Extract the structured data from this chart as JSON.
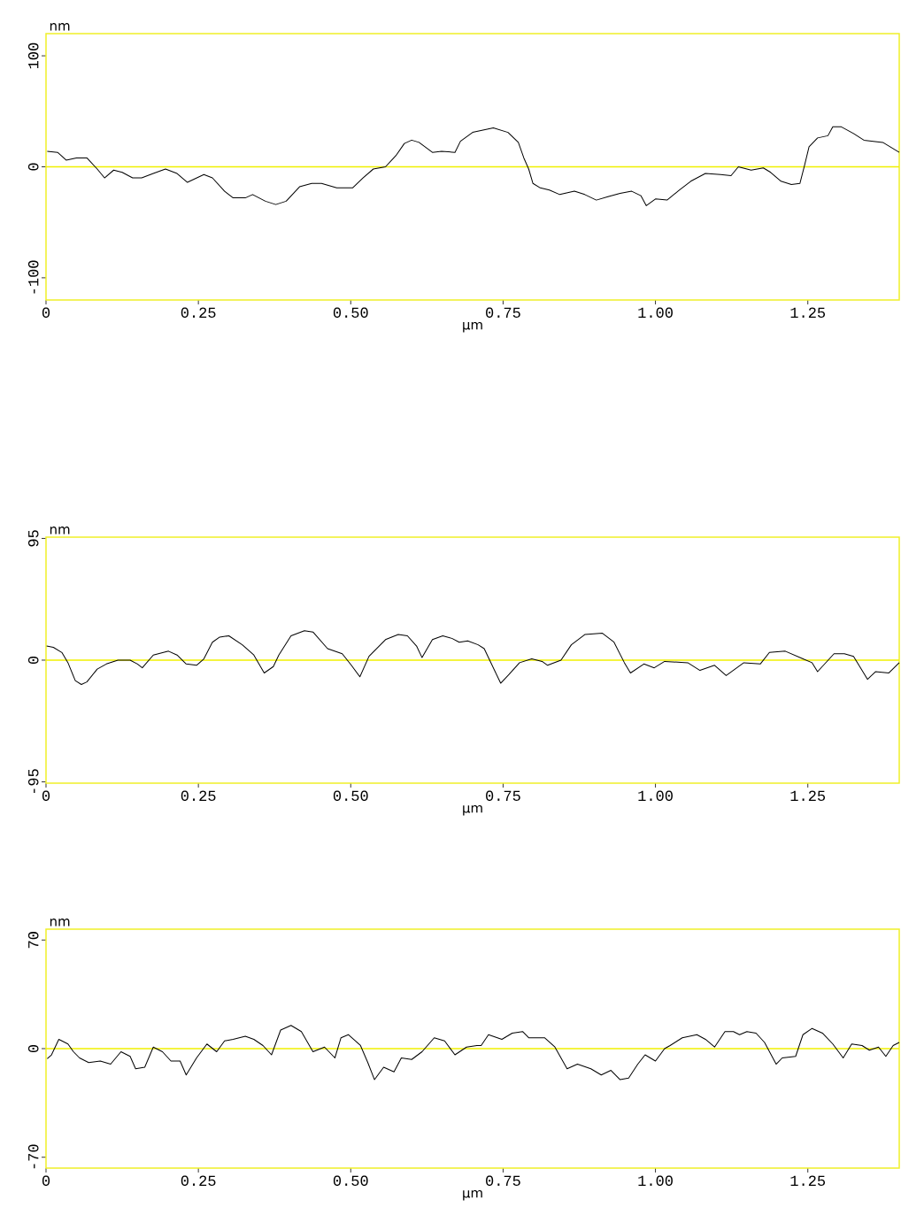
{
  "chart_data": [
    {
      "type": "line",
      "xlabel": "µm",
      "ylabel": "nm",
      "color": "#000000",
      "xlim": [
        0,
        1.4
      ],
      "ylim": [
        -120,
        120
      ],
      "xticks": [
        0,
        {
          "value": 0.25,
          "label": "0.25"
        },
        {
          "value": 0.5,
          "label": "0.50"
        },
        {
          "value": 0.75,
          "label": "0.75"
        },
        {
          "value": 1.0,
          "label": "1.00"
        },
        {
          "value": 1.25,
          "label": "1.25"
        }
      ],
      "yticks": [
        -100,
        0,
        100
      ],
      "ref_lines": [
        {
          "axis": "y",
          "value": 0,
          "color": "#f0f000"
        }
      ],
      "x": [
        0.002,
        0.019,
        0.033,
        0.05,
        0.067,
        0.084,
        0.096,
        0.111,
        0.125,
        0.142,
        0.157,
        0.176,
        0.196,
        0.215,
        0.232,
        0.259,
        0.273,
        0.293,
        0.307,
        0.327,
        0.339,
        0.36,
        0.377,
        0.394,
        0.416,
        0.436,
        0.452,
        0.477,
        0.503,
        0.52,
        0.537,
        0.557,
        0.574,
        0.588,
        0.6,
        0.612,
        0.634,
        0.649,
        0.671,
        0.68,
        0.7,
        0.734,
        0.758,
        0.775,
        0.784,
        0.792,
        0.799,
        0.811,
        0.826,
        0.843,
        0.867,
        0.884,
        0.903,
        0.922,
        0.942,
        0.961,
        0.976,
        0.985,
        1.0,
        1.019,
        1.039,
        1.058,
        1.082,
        1.107,
        1.124,
        1.136,
        1.157,
        1.177,
        1.189,
        1.206,
        1.223,
        1.237,
        1.245,
        1.252,
        1.266,
        1.283,
        1.291,
        1.305,
        1.325,
        1.342,
        1.373,
        1.4
      ],
      "values": [
        14,
        13,
        6,
        8,
        8,
        -2,
        -10,
        -3,
        -5,
        -10,
        -10,
        -6,
        -2,
        -6,
        -14,
        -7,
        -10,
        -22,
        -28,
        -28,
        -25,
        -31,
        -34,
        -31,
        -18,
        -15,
        -15,
        -19,
        -19,
        -10,
        -2,
        0,
        10,
        21,
        24,
        22,
        13,
        14,
        13,
        23,
        31,
        35,
        31,
        22,
        8,
        -2,
        -15,
        -19,
        -21,
        -25,
        -22,
        -25,
        -30,
        -27,
        -24,
        -22,
        -26,
        -35,
        -29,
        -30,
        -21,
        -13,
        -6,
        -7,
        -8,
        0,
        -3,
        -1,
        -5,
        -13,
        -16,
        -15,
        2,
        18,
        26,
        28,
        36,
        36,
        30,
        24,
        22,
        13
      ]
    },
    {
      "type": "line",
      "xlabel": "µm",
      "ylabel": "nm",
      "color": "#000000",
      "xlim": [
        0,
        1.4
      ],
      "ylim": [
        -96,
        96
      ],
      "xticks": [
        0,
        {
          "value": 0.25,
          "label": "0.25"
        },
        {
          "value": 0.5,
          "label": "0.50"
        },
        {
          "value": 0.75,
          "label": "0.75"
        },
        {
          "value": 1.0,
          "label": "1.00"
        },
        {
          "value": 1.25,
          "label": "1.25"
        }
      ],
      "yticks": [
        -95,
        0,
        95
      ],
      "ref_lines": [
        {
          "axis": "y",
          "value": 0,
          "color": "#f0f000"
        }
      ],
      "x": [
        0.001,
        0.012,
        0.026,
        0.036,
        0.048,
        0.058,
        0.067,
        0.084,
        0.099,
        0.118,
        0.138,
        0.15,
        0.158,
        0.176,
        0.201,
        0.215,
        0.23,
        0.247,
        0.259,
        0.273,
        0.285,
        0.3,
        0.322,
        0.341,
        0.358,
        0.373,
        0.382,
        0.402,
        0.424,
        0.438,
        0.462,
        0.486,
        0.501,
        0.515,
        0.53,
        0.557,
        0.578,
        0.593,
        0.608,
        0.617,
        0.634,
        0.651,
        0.666,
        0.678,
        0.692,
        0.709,
        0.719,
        0.729,
        0.746,
        0.76,
        0.777,
        0.797,
        0.814,
        0.823,
        0.845,
        0.862,
        0.884,
        0.913,
        0.932,
        0.949,
        0.959,
        0.981,
        0.998,
        1.015,
        1.053,
        1.073,
        1.097,
        1.116,
        1.145,
        1.172,
        1.187,
        1.213,
        1.242,
        1.257,
        1.266,
        1.293,
        1.31,
        1.325,
        1.348,
        1.361,
        1.383,
        1.4
      ],
      "values": [
        11,
        10,
        6,
        -2,
        -16,
        -19,
        -17,
        -7,
        -3,
        0,
        0,
        -3,
        -6,
        4,
        7,
        4,
        -3,
        -4,
        1,
        14,
        18,
        19,
        12,
        4,
        -10,
        -5,
        4,
        19,
        23,
        22,
        9,
        5,
        -4,
        -13,
        3,
        16,
        20,
        19,
        11,
        2,
        16,
        19,
        17,
        14,
        15,
        12,
        9,
        -1,
        -18,
        -11,
        -2,
        1,
        -1,
        -4,
        0,
        12,
        20,
        21,
        14,
        -2,
        -10,
        -3,
        -6,
        -1,
        -2,
        -8,
        -4,
        -12,
        -2,
        -3,
        6,
        7,
        1,
        -2,
        -9,
        5,
        5,
        3,
        -15,
        -9,
        -10,
        -2
      ]
    },
    {
      "type": "line",
      "xlabel": "µm",
      "ylabel": "nm",
      "color": "#000000",
      "xlim": [
        0,
        1.4
      ],
      "ylim": [
        -77,
        77
      ],
      "xticks": [
        0,
        {
          "value": 0.25,
          "label": "0.25"
        },
        {
          "value": 0.5,
          "label": "0.50"
        },
        {
          "value": 0.75,
          "label": "0.75"
        },
        {
          "value": 1.0,
          "label": "1.00"
        },
        {
          "value": 1.25,
          "label": "1.25"
        }
      ],
      "yticks": [
        -70,
        0,
        70
      ],
      "ref_lines": [
        {
          "axis": "y",
          "value": 0,
          "color": "#f0f000"
        }
      ],
      "x": [
        0.002,
        0.009,
        0.021,
        0.036,
        0.045,
        0.055,
        0.07,
        0.089,
        0.106,
        0.123,
        0.138,
        0.147,
        0.162,
        0.176,
        0.191,
        0.205,
        0.22,
        0.23,
        0.247,
        0.264,
        0.28,
        0.293,
        0.307,
        0.327,
        0.341,
        0.356,
        0.37,
        0.385,
        0.402,
        0.419,
        0.438,
        0.457,
        0.474,
        0.484,
        0.496,
        0.516,
        0.528,
        0.539,
        0.554,
        0.571,
        0.583,
        0.6,
        0.617,
        0.637,
        0.654,
        0.671,
        0.69,
        0.707,
        0.714,
        0.726,
        0.748,
        0.765,
        0.782,
        0.792,
        0.818,
        0.835,
        0.855,
        0.872,
        0.894,
        0.911,
        0.927,
        0.942,
        0.956,
        0.971,
        0.983,
        1.0,
        1.015,
        1.024,
        1.044,
        1.068,
        1.082,
        1.097,
        1.114,
        1.128,
        1.138,
        1.15,
        1.165,
        1.179,
        1.198,
        1.208,
        1.23,
        1.242,
        1.257,
        1.274,
        1.291,
        1.308,
        1.322,
        1.339,
        1.351,
        1.366,
        1.378,
        1.39,
        1.4
      ],
      "values": [
        -6.5,
        -4,
        6,
        3,
        -2,
        -6,
        -9,
        -8,
        -10,
        -2,
        -5,
        -13,
        -12,
        1,
        -2,
        -8,
        -8,
        -17,
        -6,
        3,
        -2,
        5,
        6,
        8,
        6,
        2,
        -4,
        12,
        15,
        11,
        -2,
        1,
        -6,
        7,
        9,
        2,
        -9,
        -20,
        -12,
        -15,
        -6,
        -7,
        -2,
        7,
        5,
        -4,
        1,
        2,
        2,
        9,
        6,
        10,
        11,
        7,
        7,
        1,
        -13,
        -10,
        -13,
        -17,
        -14,
        -20,
        -19,
        -10,
        -4,
        -8,
        0,
        2,
        7,
        9,
        6,
        1,
        11,
        11,
        9,
        11,
        10,
        4,
        -10,
        -6,
        -5,
        9,
        13,
        10,
        3,
        -6,
        3,
        2,
        -1,
        1,
        -5,
        2,
        4
      ]
    }
  ]
}
